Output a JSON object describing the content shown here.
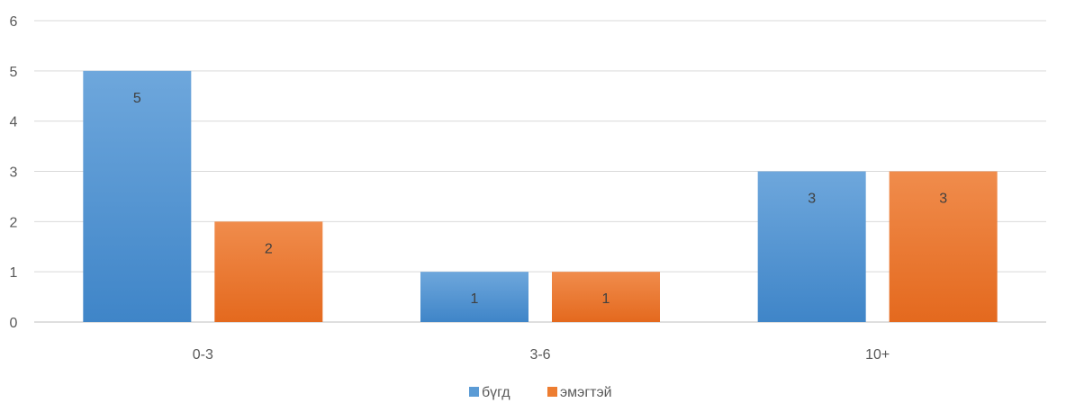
{
  "chart_data": {
    "type": "bar",
    "categories": [
      "0-3",
      "3-6",
      "10+"
    ],
    "series": [
      {
        "name": "бүгд",
        "values": [
          5,
          1,
          3
        ],
        "color": "#5b9bd5"
      },
      {
        "name": "эмэгтэй",
        "values": [
          2,
          1,
          3
        ],
        "color": "#ed7d31"
      }
    ],
    "ylim": [
      0,
      6
    ],
    "yticks": [
      0,
      1,
      2,
      3,
      4,
      5,
      6
    ],
    "grid": true,
    "legend": "bottom",
    "data_labels": true,
    "title": "",
    "xlabel": "",
    "ylabel": ""
  }
}
